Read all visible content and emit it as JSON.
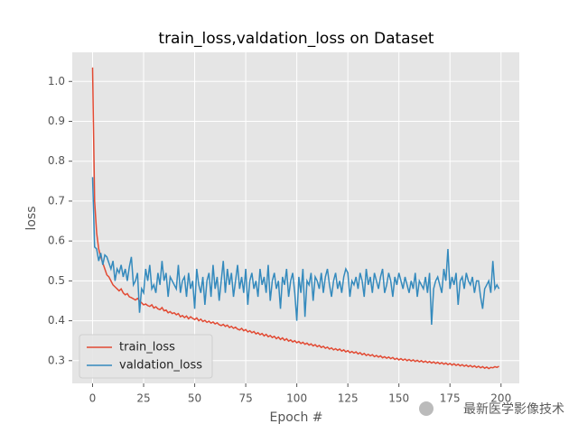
{
  "chart_data": {
    "type": "line",
    "title": "train_loss,valdation_loss on Dataset",
    "xlabel": "Epoch #",
    "ylabel": "loss",
    "watermark": "最新医学影像技术",
    "x": [
      0,
      1,
      2,
      3,
      4,
      5,
      6,
      7,
      8,
      9,
      10,
      11,
      12,
      13,
      14,
      15,
      16,
      17,
      18,
      19,
      20,
      21,
      22,
      23,
      24,
      25,
      26,
      27,
      28,
      29,
      30,
      31,
      32,
      33,
      34,
      35,
      36,
      37,
      38,
      39,
      40,
      41,
      42,
      43,
      44,
      45,
      46,
      47,
      48,
      49,
      50,
      51,
      52,
      53,
      54,
      55,
      56,
      57,
      58,
      59,
      60,
      61,
      62,
      63,
      64,
      65,
      66,
      67,
      68,
      69,
      70,
      71,
      72,
      73,
      74,
      75,
      76,
      77,
      78,
      79,
      80,
      81,
      82,
      83,
      84,
      85,
      86,
      87,
      88,
      89,
      90,
      91,
      92,
      93,
      94,
      95,
      96,
      97,
      98,
      99,
      100,
      101,
      102,
      103,
      104,
      105,
      106,
      107,
      108,
      109,
      110,
      111,
      112,
      113,
      114,
      115,
      116,
      117,
      118,
      119,
      120,
      121,
      122,
      123,
      124,
      125,
      126,
      127,
      128,
      129,
      130,
      131,
      132,
      133,
      134,
      135,
      136,
      137,
      138,
      139,
      140,
      141,
      142,
      143,
      144,
      145,
      146,
      147,
      148,
      149,
      150,
      151,
      152,
      153,
      154,
      155,
      156,
      157,
      158,
      159,
      160,
      161,
      162,
      163,
      164,
      165,
      166,
      167,
      168,
      169,
      170,
      171,
      172,
      173,
      174,
      175,
      176,
      177,
      178,
      179,
      180,
      181,
      182,
      183,
      184,
      185,
      186,
      187,
      188,
      189,
      190,
      191,
      192,
      193,
      194,
      195,
      196,
      197,
      198,
      199
    ],
    "series": [
      {
        "name": "train_loss",
        "color": "#e24a33",
        "values": [
          1.035,
          0.7,
          0.62,
          0.58,
          0.56,
          0.545,
          0.53,
          0.515,
          0.51,
          0.5,
          0.49,
          0.485,
          0.48,
          0.475,
          0.48,
          0.47,
          0.465,
          0.468,
          0.46,
          0.458,
          0.455,
          0.452,
          0.456,
          0.45,
          0.445,
          0.44,
          0.442,
          0.438,
          0.436,
          0.44,
          0.432,
          0.435,
          0.43,
          0.428,
          0.433,
          0.425,
          0.427,
          0.42,
          0.423,
          0.418,
          0.42,
          0.415,
          0.418,
          0.41,
          0.413,
          0.408,
          0.412,
          0.405,
          0.41,
          0.406,
          0.403,
          0.407,
          0.4,
          0.404,
          0.398,
          0.401,
          0.396,
          0.399,
          0.394,
          0.397,
          0.392,
          0.395,
          0.39,
          0.388,
          0.391,
          0.386,
          0.389,
          0.383,
          0.386,
          0.381,
          0.384,
          0.379,
          0.377,
          0.381,
          0.375,
          0.378,
          0.372,
          0.375,
          0.37,
          0.373,
          0.367,
          0.37,
          0.365,
          0.368,
          0.362,
          0.366,
          0.36,
          0.363,
          0.358,
          0.361,
          0.355,
          0.359,
          0.353,
          0.357,
          0.351,
          0.355,
          0.349,
          0.352,
          0.347,
          0.35,
          0.345,
          0.348,
          0.343,
          0.346,
          0.341,
          0.344,
          0.339,
          0.342,
          0.337,
          0.34,
          0.335,
          0.338,
          0.333,
          0.336,
          0.331,
          0.334,
          0.329,
          0.332,
          0.327,
          0.33,
          0.326,
          0.329,
          0.324,
          0.327,
          0.322,
          0.325,
          0.32,
          0.323,
          0.319,
          0.322,
          0.317,
          0.32,
          0.315,
          0.318,
          0.313,
          0.316,
          0.312,
          0.315,
          0.31,
          0.313,
          0.309,
          0.312,
          0.307,
          0.31,
          0.306,
          0.309,
          0.305,
          0.308,
          0.303,
          0.306,
          0.302,
          0.305,
          0.301,
          0.304,
          0.3,
          0.303,
          0.299,
          0.302,
          0.298,
          0.301,
          0.297,
          0.3,
          0.296,
          0.299,
          0.295,
          0.298,
          0.294,
          0.297,
          0.293,
          0.296,
          0.292,
          0.295,
          0.291,
          0.294,
          0.29,
          0.293,
          0.289,
          0.292,
          0.288,
          0.291,
          0.287,
          0.29,
          0.286,
          0.289,
          0.285,
          0.288,
          0.284,
          0.287,
          0.283,
          0.286,
          0.282,
          0.285,
          0.281,
          0.284,
          0.28,
          0.283,
          0.282,
          0.285,
          0.283,
          0.286
        ]
      },
      {
        "name": "valdation_loss",
        "color": "#348abd",
        "values": [
          0.76,
          0.585,
          0.58,
          0.55,
          0.57,
          0.54,
          0.565,
          0.56,
          0.545,
          0.53,
          0.55,
          0.5,
          0.53,
          0.52,
          0.54,
          0.51,
          0.53,
          0.5,
          0.535,
          0.56,
          0.49,
          0.5,
          0.52,
          0.42,
          0.48,
          0.47,
          0.53,
          0.5,
          0.54,
          0.48,
          0.49,
          0.47,
          0.52,
          0.49,
          0.55,
          0.5,
          0.52,
          0.46,
          0.51,
          0.5,
          0.49,
          0.48,
          0.54,
          0.47,
          0.5,
          0.51,
          0.46,
          0.52,
          0.48,
          0.5,
          0.43,
          0.53,
          0.49,
          0.47,
          0.51,
          0.44,
          0.5,
          0.52,
          0.46,
          0.54,
          0.48,
          0.51,
          0.45,
          0.5,
          0.55,
          0.47,
          0.53,
          0.49,
          0.52,
          0.46,
          0.5,
          0.54,
          0.48,
          0.51,
          0.47,
          0.53,
          0.44,
          0.5,
          0.52,
          0.48,
          0.5,
          0.46,
          0.53,
          0.49,
          0.51,
          0.47,
          0.54,
          0.45,
          0.5,
          0.52,
          0.48,
          0.5,
          0.43,
          0.51,
          0.49,
          0.53,
          0.46,
          0.5,
          0.52,
          0.47,
          0.4,
          0.51,
          0.47,
          0.53,
          0.41,
          0.5,
          0.49,
          0.52,
          0.45,
          0.51,
          0.5,
          0.48,
          0.52,
          0.47,
          0.51,
          0.53,
          0.49,
          0.46,
          0.5,
          0.52,
          0.48,
          0.5,
          0.47,
          0.51,
          0.53,
          0.52,
          0.46,
          0.5,
          0.49,
          0.51,
          0.48,
          0.52,
          0.5,
          0.46,
          0.53,
          0.49,
          0.51,
          0.47,
          0.52,
          0.5,
          0.48,
          0.51,
          0.53,
          0.47,
          0.49,
          0.52,
          0.5,
          0.46,
          0.51,
          0.49,
          0.52,
          0.5,
          0.48,
          0.51,
          0.49,
          0.47,
          0.5,
          0.48,
          0.52,
          0.46,
          0.5,
          0.49,
          0.48,
          0.51,
          0.47,
          0.52,
          0.39,
          0.48,
          0.5,
          0.51,
          0.49,
          0.47,
          0.53,
          0.5,
          0.58,
          0.48,
          0.51,
          0.49,
          0.52,
          0.44,
          0.5,
          0.51,
          0.48,
          0.52,
          0.5,
          0.49,
          0.51,
          0.47,
          0.5,
          0.5,
          0.46,
          0.43,
          0.48,
          0.49,
          0.5,
          0.47,
          0.55,
          0.48,
          0.49,
          0.48
        ]
      }
    ],
    "xlim": [
      -9.95,
      208.95
    ],
    "xticks": [
      0,
      25,
      50,
      75,
      100,
      125,
      150,
      175,
      200
    ],
    "ylim": [
      0.243,
      1.073
    ],
    "yticks": [
      {
        "value": 0.3,
        "label": "0.3"
      },
      {
        "value": 0.4,
        "label": "0.4"
      },
      {
        "value": 0.5,
        "label": "0.5"
      },
      {
        "value": 0.6,
        "label": "0.6"
      },
      {
        "value": 0.7,
        "label": "0.7"
      },
      {
        "value": 0.8,
        "label": "0.8"
      },
      {
        "value": 0.9,
        "label": "0.9"
      },
      {
        "value": 1.0,
        "label": "1.0"
      }
    ],
    "grid": true,
    "legend": "lower left"
  }
}
